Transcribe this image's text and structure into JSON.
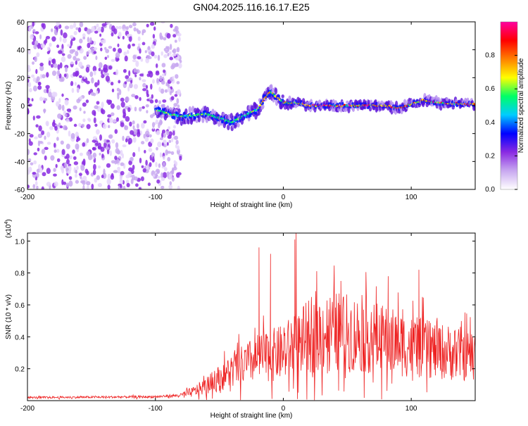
{
  "title": "GN04.2025.116.16.17.E25",
  "chart_data": [
    {
      "type": "heatmap",
      "xlabel": "Height of straight line (km)",
      "ylabel": "Frequency (Hz)",
      "xlim": [
        -200,
        150
      ],
      "ylim": [
        -60,
        60
      ],
      "xticks": [
        -200,
        -100,
        0,
        100
      ],
      "yticks": [
        60,
        40,
        20,
        0,
        -20,
        -40,
        -60
      ],
      "colorbar": {
        "label": "Normalized spectral amplitude",
        "range": [
          0,
          1
        ],
        "ticks": [
          "0.8",
          "0.6",
          "0.4",
          "0.2",
          "0.0"
        ],
        "colors": [
          "#ffffff",
          "#c8a8f0",
          "#8a2be2",
          "#0000ff",
          "#00ccff",
          "#00ff66",
          "#ffff00",
          "#ff8000",
          "#ff0000",
          "#ff00a0"
        ]
      },
      "signal_track": {
        "x": [
          -100,
          -80,
          -60,
          -40,
          -30,
          -20,
          -15,
          -10,
          -5,
          0,
          10,
          20,
          40,
          60,
          80,
          90,
          100,
          110,
          120,
          150
        ],
        "y": [
          -3,
          -8,
          -6,
          -12,
          -7,
          -3,
          5,
          10,
          6,
          2,
          2,
          0,
          0,
          0,
          0,
          -2,
          1,
          4,
          2,
          1
        ]
      },
      "noise_region_x": [
        -200,
        -80
      ]
    },
    {
      "type": "line",
      "xlabel": "Height of straight line (km)",
      "ylabel": "SNR (10 * v/v)",
      "scale_note": "(x10",
      "scale_exp": "4",
      "xlim": [
        -200,
        150
      ],
      "ylim": [
        0,
        1.05
      ],
      "xticks": [
        -200,
        -100,
        0,
        100
      ],
      "yticks": [
        "1.0",
        "0.8",
        "0.6",
        "0.4",
        "0.2"
      ],
      "color": "#ee2222",
      "envelope": {
        "x": [
          -200,
          -100,
          -80,
          -70,
          -60,
          -50,
          -40,
          -30,
          -20,
          -10,
          0,
          10,
          20,
          30,
          40,
          60,
          80,
          100,
          120,
          150
        ],
        "y": [
          0.02,
          0.025,
          0.035,
          0.06,
          0.1,
          0.15,
          0.2,
          0.24,
          0.28,
          0.3,
          0.32,
          0.38,
          0.42,
          0.45,
          0.46,
          0.44,
          0.4,
          0.36,
          0.33,
          0.3
        ]
      },
      "peaks": {
        "x": [
          -19,
          -10,
          9,
          10,
          22,
          45,
          82,
          106,
          142
        ],
        "y": [
          0.96,
          0.92,
          1.01,
          1.05,
          0.65,
          0.75,
          0.78,
          0.82,
          0.45
        ]
      }
    }
  ]
}
